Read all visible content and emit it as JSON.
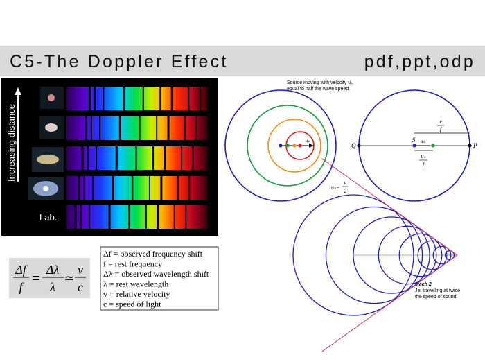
{
  "header": {
    "title": "C5-The Doppler Effect",
    "formats": "pdf,ppt,odp"
  },
  "spectra": {
    "axis_label": "Increasing distance",
    "lab_label": "Lab."
  },
  "equation": {
    "lhs_num": "Δf",
    "lhs_den": "f",
    "eq": "=",
    "mid_num": "Δλ",
    "mid_den": "λ",
    "approx": "≃",
    "rhs_num": "v",
    "rhs_den": "c"
  },
  "legend": [
    "Δf = observed frequency shift",
    "f = rest frequency",
    "Δλ = observed wavelength shift",
    "λ = rest wavelength",
    "v = relative velocity",
    "c = speed of light"
  ],
  "diagram_source": {
    "caption_line1": "Source moving with velocity uₛ",
    "caption_line2": "equal to half the wave speed.",
    "arrow_label": "uₛ"
  },
  "diagram_points": {
    "q": "Q",
    "s": "S",
    "p": "P",
    "arrow_label": "uₛ",
    "top_num": "v",
    "top_den": "f",
    "bottom_num": "uₛ",
    "bottom_den": "f"
  },
  "diagram_mach": {
    "speed_lhs": "uₛ=",
    "speed_num": "v",
    "speed_den": "2",
    "mach": "Mach 2",
    "caption_line1": "Jet travelling at twice",
    "caption_line2": "the speed of sound."
  }
}
